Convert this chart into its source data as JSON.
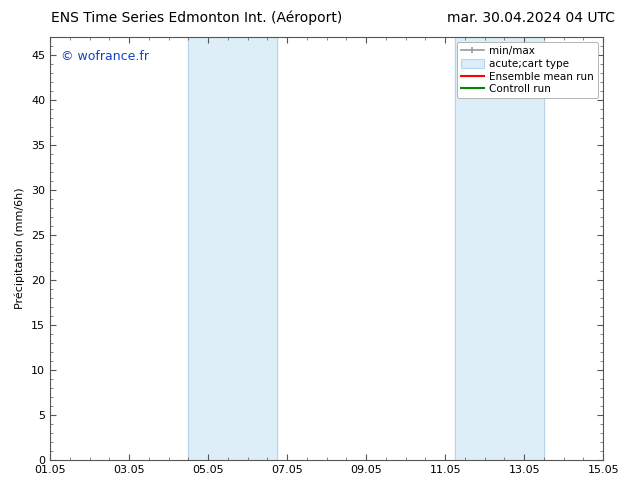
{
  "title_left": "ENS Time Series Edmonton Int. (Aéroport)",
  "title_right": "mar. 30.04.2024 04 UTC",
  "ylabel": "Précipitation (mm/6h)",
  "ylim": [
    0,
    47
  ],
  "yticks": [
    0,
    5,
    10,
    15,
    20,
    25,
    30,
    35,
    40,
    45
  ],
  "xtick_labels": [
    "01.05",
    "03.05",
    "05.05",
    "07.05",
    "09.05",
    "11.05",
    "13.05",
    "15.05"
  ],
  "xtick_positions": [
    0,
    2,
    4,
    6,
    8,
    10,
    12,
    14
  ],
  "shaded_regions": [
    {
      "xmin": 3.5,
      "xmax": 5.75,
      "color": "#ddeef9"
    },
    {
      "xmin": 10.25,
      "xmax": 12.5,
      "color": "#ddeef9"
    }
  ],
  "shaded_border_color": "#b8d4ed",
  "watermark_text": "© wofrance.fr",
  "watermark_color": "#1144cc",
  "bg_color": "#ffffff",
  "plot_bg_color": "#ffffff",
  "legend_items": [
    {
      "label": "min/max",
      "color": "#999999",
      "type": "errorbar"
    },
    {
      "label": "acute;cart type",
      "color": "#ddeef9",
      "type": "rect"
    },
    {
      "label": "Ensemble mean run",
      "color": "#ff0000",
      "type": "line"
    },
    {
      "label": "Controll run",
      "color": "#008800",
      "type": "line"
    }
  ],
  "title_fontsize": 10,
  "tick_fontsize": 8,
  "ylabel_fontsize": 8,
  "legend_fontsize": 7.5,
  "watermark_fontsize": 9
}
